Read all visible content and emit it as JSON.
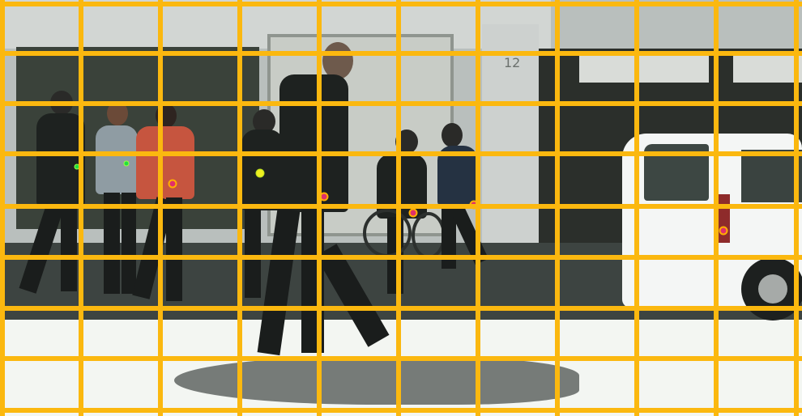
{
  "scene": {
    "house_number": "12",
    "grid_color": "#fbb80f",
    "grid_columns": 10,
    "grid_rows": 8
  },
  "markers": [
    {
      "name": "keypoint-marker",
      "kind": "green"
    },
    {
      "name": "keypoint-marker",
      "kind": "green"
    },
    {
      "name": "keypoint-marker",
      "kind": "red"
    },
    {
      "name": "keypoint-marker",
      "kind": "yellow"
    },
    {
      "name": "keypoint-marker",
      "kind": "red"
    },
    {
      "name": "keypoint-marker",
      "kind": "red"
    },
    {
      "name": "keypoint-marker",
      "kind": "red"
    },
    {
      "name": "keypoint-marker",
      "kind": "red"
    }
  ]
}
